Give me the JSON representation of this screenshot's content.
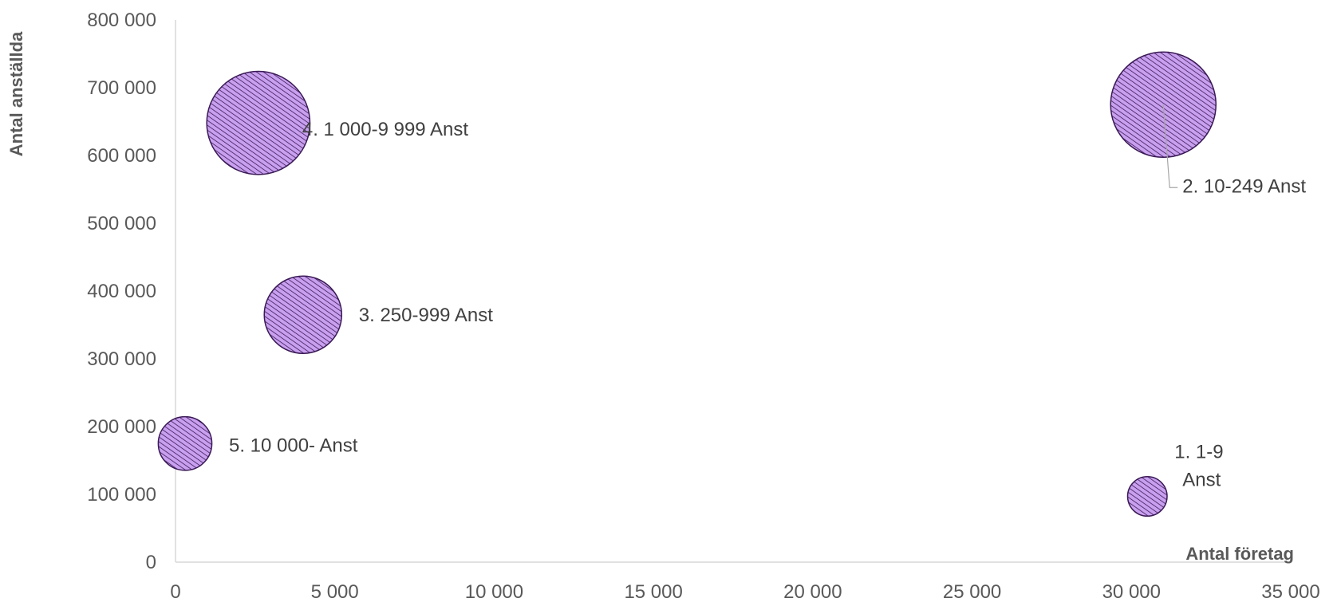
{
  "chart_data": {
    "type": "bubble",
    "xlabel": "Antal företag",
    "ylabel": "Antal anställda",
    "xlim": [
      0,
      35000
    ],
    "ylim": [
      0,
      800000
    ],
    "x_ticks": [
      "0",
      "5 000",
      "10 000",
      "15 000",
      "20 000",
      "25 000",
      "30 000",
      "35 000"
    ],
    "y_ticks": [
      "0",
      "100 000",
      "200 000",
      "300 000",
      "400 000",
      "500 000",
      "600 000",
      "700 000",
      "800 000"
    ],
    "grid": false,
    "legend": "none",
    "colors": {
      "fill": "#c9a0f0",
      "stroke": "#3a1a55",
      "axis": "#d9d9d9"
    },
    "points": [
      {
        "label": "1. 1-9 Anst",
        "label_lines": [
          "1. 1-9",
          "Anst"
        ],
        "x": 30500,
        "y": 97000,
        "size": 95000
      },
      {
        "label": "2. 10-249 Anst",
        "label_lines": [
          "2. 10-249 Anst"
        ],
        "x": 31000,
        "y": 675000,
        "size": 675000
      },
      {
        "label": "3. 250-999 Anst",
        "label_lines": [
          "3. 250-999 Anst"
        ],
        "x": 4000,
        "y": 365000,
        "size": 365000
      },
      {
        "label": "4. 1 000-9 999 Anst",
        "label_lines": [
          "4. 1 000-9 999 Anst"
        ],
        "x": 2600,
        "y": 648000,
        "size": 648000
      },
      {
        "label": "5. 10 000- Anst",
        "label_lines": [
          "5. 10 000- Anst"
        ],
        "x": 300,
        "y": 175000,
        "size": 175000
      }
    ]
  }
}
